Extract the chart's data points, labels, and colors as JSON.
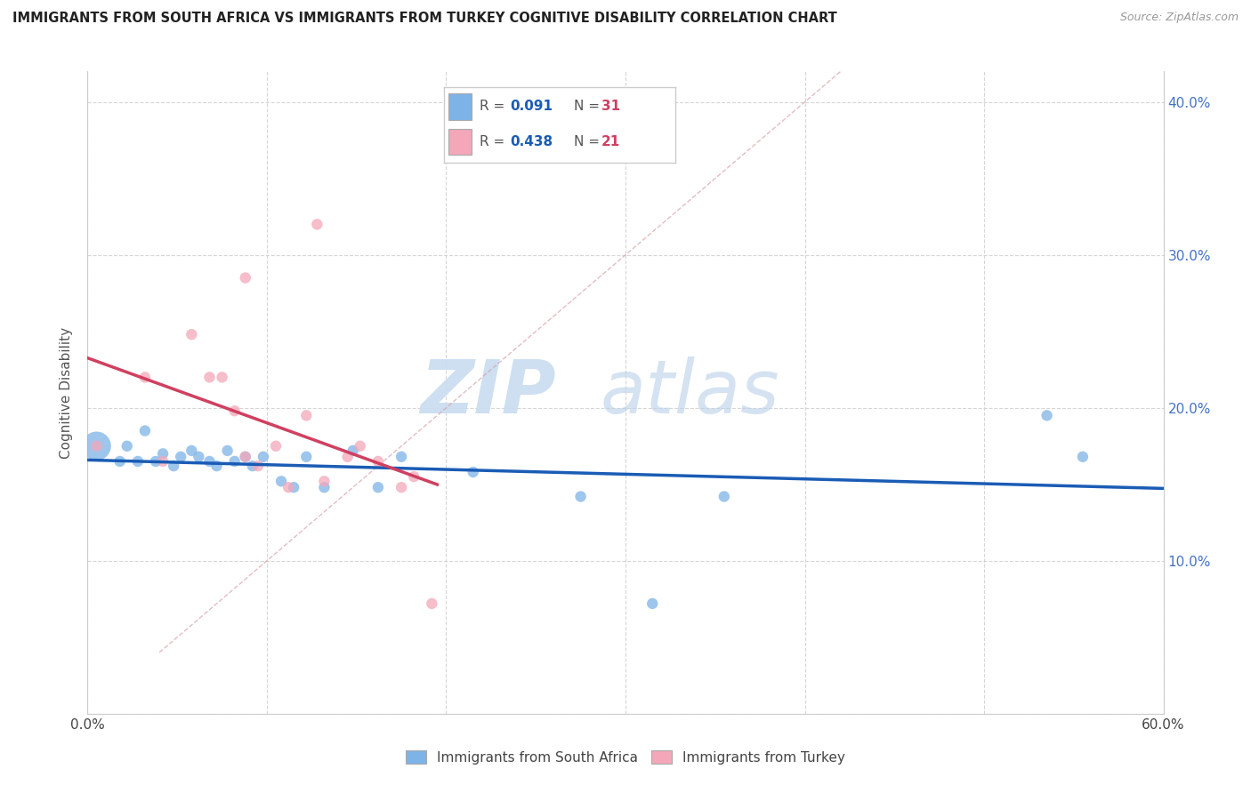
{
  "title": "IMMIGRANTS FROM SOUTH AFRICA VS IMMIGRANTS FROM TURKEY COGNITIVE DISABILITY CORRELATION CHART",
  "source": "Source: ZipAtlas.com",
  "ylabel": "Cognitive Disability",
  "xlim": [
    0.0,
    0.6
  ],
  "ylim": [
    0.0,
    0.42
  ],
  "color_blue": "#7EB3E8",
  "color_pink": "#F4A7B9",
  "line_blue": "#1A5CB5",
  "line_pink": "#D04060",
  "diag_color": "#D8A0A8",
  "legend_r1_val": "0.091",
  "legend_n1_val": "31",
  "legend_r2_val": "0.438",
  "legend_n2_val": "21",
  "r_color": "#1A5CB5",
  "n_color": "#D04060",
  "watermark_zip": "ZIP",
  "watermark_atlas": "atlas",
  "south_africa_x": [
    0.005,
    0.018,
    0.022,
    0.028,
    0.032,
    0.038,
    0.042,
    0.048,
    0.052,
    0.058,
    0.062,
    0.068,
    0.072,
    0.078,
    0.082,
    0.088,
    0.092,
    0.098,
    0.108,
    0.115,
    0.122,
    0.132,
    0.148,
    0.162,
    0.175,
    0.215,
    0.275,
    0.315,
    0.355,
    0.535,
    0.555
  ],
  "south_africa_y": [
    0.175,
    0.165,
    0.175,
    0.165,
    0.185,
    0.165,
    0.17,
    0.162,
    0.168,
    0.172,
    0.168,
    0.165,
    0.162,
    0.172,
    0.165,
    0.168,
    0.162,
    0.168,
    0.152,
    0.148,
    0.168,
    0.148,
    0.172,
    0.148,
    0.168,
    0.158,
    0.142,
    0.072,
    0.142,
    0.195,
    0.168
  ],
  "south_africa_sizes": [
    550,
    80,
    80,
    80,
    80,
    80,
    80,
    80,
    80,
    80,
    80,
    80,
    80,
    80,
    80,
    80,
    80,
    80,
    80,
    80,
    80,
    80,
    80,
    80,
    80,
    80,
    80,
    80,
    80,
    80,
    80
  ],
  "turkey_x": [
    0.005,
    0.032,
    0.042,
    0.058,
    0.068,
    0.075,
    0.082,
    0.088,
    0.095,
    0.105,
    0.112,
    0.122,
    0.132,
    0.145,
    0.152,
    0.162,
    0.175,
    0.182,
    0.192
  ],
  "turkey_y": [
    0.175,
    0.22,
    0.165,
    0.248,
    0.22,
    0.22,
    0.198,
    0.168,
    0.162,
    0.175,
    0.148,
    0.195,
    0.152,
    0.168,
    0.175,
    0.165,
    0.148,
    0.155,
    0.072
  ],
  "turkey_sizes": [
    80,
    80,
    80,
    80,
    80,
    80,
    80,
    80,
    80,
    80,
    80,
    80,
    80,
    80,
    80,
    80,
    80,
    80,
    80
  ],
  "turkey_outlier_x": [
    0.128
  ],
  "turkey_outlier_y": [
    0.32
  ],
  "turkey_outlier2_x": [
    0.088
  ],
  "turkey_outlier2_y": [
    0.285
  ]
}
